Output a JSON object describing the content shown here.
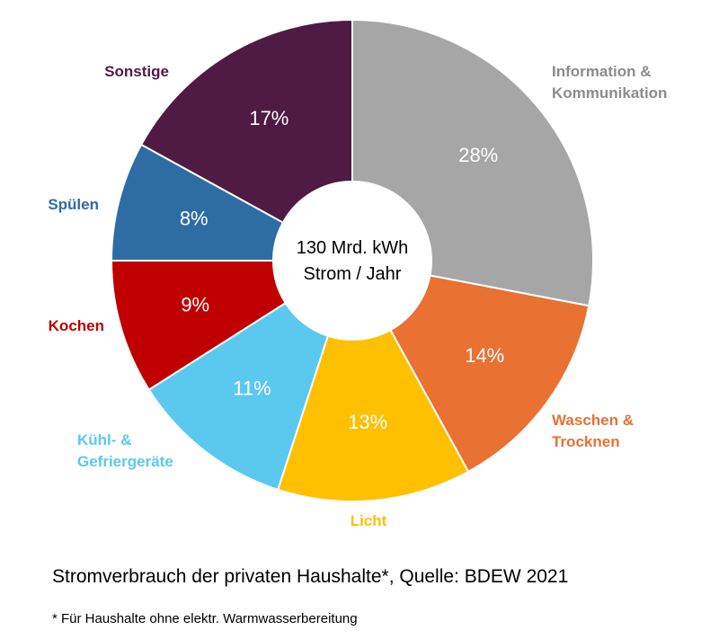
{
  "chart_data": {
    "type": "donut",
    "center_text": "130 Mrd. kWh\nStrom / Jahr",
    "categories": [
      "Information &\nKommunikation",
      "Waschen &\nTrocknen",
      "Licht",
      "Kühl- &\nGefriergeräte",
      "Kochen",
      "Spülen",
      "Sonstige"
    ],
    "values": [
      28,
      14,
      13,
      11,
      9,
      8,
      17
    ],
    "value_labels": [
      "28%",
      "14%",
      "13%",
      "11%",
      "9%",
      "8%",
      "17%"
    ],
    "colors": [
      "#a6a6a6",
      "#e97132",
      "#ffc000",
      "#5bc8f0",
      "#c00000",
      "#2e6da4",
      "#4f1a44"
    ],
    "caption": "Stromverbrauch der privaten Haushalte*, Quelle: BDEW 2021",
    "footnote": "* Für Haushalte ohne elektr. Warmwasserbereitung"
  }
}
